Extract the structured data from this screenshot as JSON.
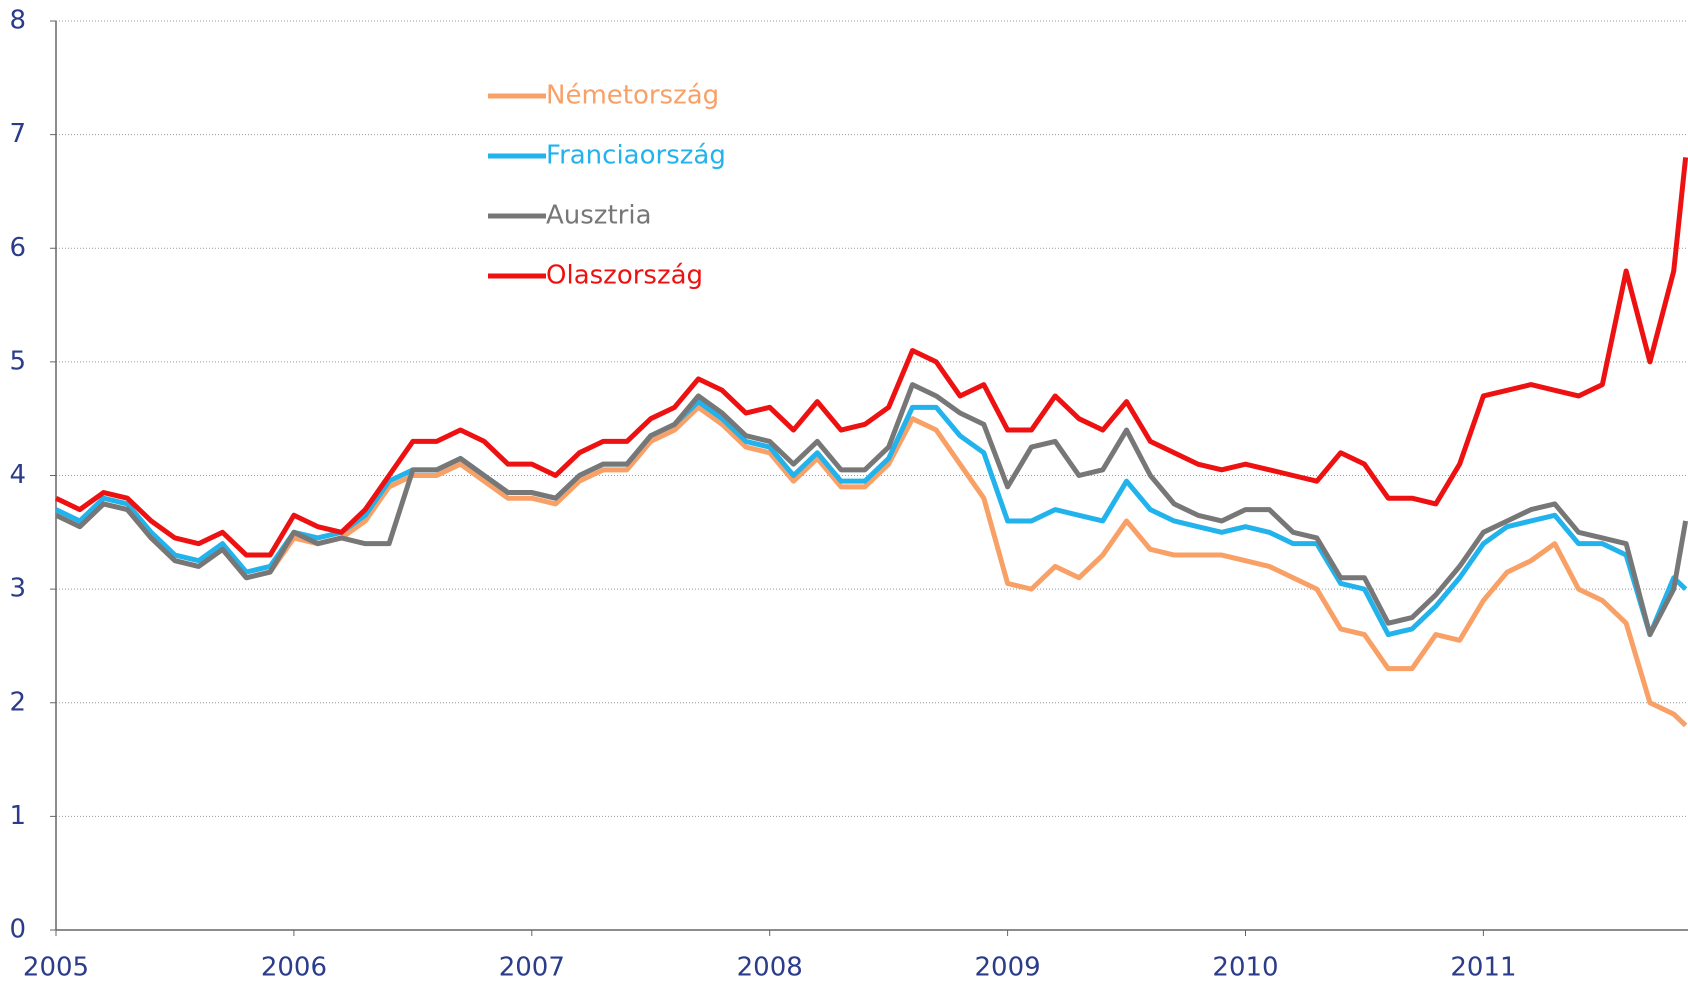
{
  "chart_data": {
    "type": "line",
    "x": [
      2005.0,
      2005.1,
      2005.2,
      2005.3,
      2005.4,
      2005.5,
      2005.6,
      2005.7,
      2005.8,
      2005.9,
      2006.0,
      2006.1,
      2006.2,
      2006.3,
      2006.4,
      2006.5,
      2006.6,
      2006.7,
      2006.8,
      2006.9,
      2007.0,
      2007.1,
      2007.2,
      2007.3,
      2007.4,
      2007.5,
      2007.6,
      2007.7,
      2007.8,
      2007.9,
      2008.0,
      2008.1,
      2008.2,
      2008.3,
      2008.4,
      2008.5,
      2008.6,
      2008.7,
      2008.8,
      2008.9,
      2009.0,
      2009.1,
      2009.2,
      2009.3,
      2009.4,
      2009.5,
      2009.6,
      2009.7,
      2009.8,
      2009.9,
      2010.0,
      2010.1,
      2010.2,
      2010.3,
      2010.4,
      2010.5,
      2010.6,
      2010.7,
      2010.8,
      2010.9,
      2011.0,
      2011.1,
      2011.2,
      2011.3,
      2011.4,
      2011.5,
      2011.6,
      2011.7,
      2011.8,
      2011.85
    ],
    "series": [
      {
        "name": "Németország",
        "color": "#f9a066",
        "values": [
          3.65,
          3.55,
          3.75,
          3.7,
          3.45,
          3.25,
          3.2,
          3.35,
          3.1,
          3.15,
          3.45,
          3.4,
          3.45,
          3.6,
          3.9,
          4.0,
          4.0,
          4.1,
          3.95,
          3.8,
          3.8,
          3.75,
          3.95,
          4.05,
          4.05,
          4.3,
          4.4,
          4.6,
          4.45,
          4.25,
          4.2,
          3.95,
          4.15,
          3.9,
          3.9,
          4.1,
          4.5,
          4.4,
          4.1,
          3.8,
          3.05,
          3.0,
          3.2,
          3.1,
          3.3,
          3.6,
          3.35,
          3.3,
          3.3,
          3.3,
          3.25,
          3.2,
          3.1,
          3.0,
          2.65,
          2.6,
          2.3,
          2.3,
          2.6,
          2.55,
          2.9,
          3.15,
          3.25,
          3.4,
          3.0,
          2.9,
          2.7,
          2.0,
          1.9,
          1.8
        ]
      },
      {
        "name": "Franciaország",
        "color": "#22b3ec",
        "values": [
          3.7,
          3.6,
          3.8,
          3.75,
          3.5,
          3.3,
          3.25,
          3.4,
          3.15,
          3.2,
          3.5,
          3.45,
          3.5,
          3.65,
          3.95,
          4.05,
          4.05,
          4.15,
          4.0,
          3.85,
          3.85,
          3.8,
          4.0,
          4.1,
          4.1,
          4.35,
          4.45,
          4.65,
          4.5,
          4.3,
          4.25,
          4.0,
          4.2,
          3.95,
          3.95,
          4.15,
          4.6,
          4.6,
          4.35,
          4.2,
          3.6,
          3.6,
          3.7,
          3.65,
          3.6,
          3.95,
          3.7,
          3.6,
          3.55,
          3.5,
          3.55,
          3.5,
          3.4,
          3.4,
          3.05,
          3.0,
          2.6,
          2.65,
          2.85,
          3.1,
          3.4,
          3.55,
          3.6,
          3.65,
          3.4,
          3.4,
          3.3,
          2.6,
          3.1,
          3.0
        ]
      },
      {
        "name": "Ausztria",
        "color": "#777777",
        "values": [
          3.65,
          3.55,
          3.75,
          3.7,
          3.45,
          3.25,
          3.2,
          3.35,
          3.1,
          3.15,
          3.5,
          3.4,
          3.45,
          3.4,
          3.4,
          4.05,
          4.05,
          4.15,
          4.0,
          3.85,
          3.85,
          3.8,
          4.0,
          4.1,
          4.1,
          4.35,
          4.45,
          4.7,
          4.55,
          4.35,
          4.3,
          4.1,
          4.3,
          4.05,
          4.05,
          4.25,
          4.8,
          4.7,
          4.55,
          4.45,
          3.9,
          4.25,
          4.3,
          4.0,
          4.05,
          4.4,
          4.0,
          3.75,
          3.65,
          3.6,
          3.7,
          3.7,
          3.5,
          3.45,
          3.1,
          3.1,
          2.7,
          2.75,
          2.95,
          3.2,
          3.5,
          3.6,
          3.7,
          3.75,
          3.5,
          3.45,
          3.4,
          2.6,
          3.0,
          3.6
        ]
      },
      {
        "name": "Olaszország",
        "color": "#ee1111",
        "values": [
          3.8,
          3.7,
          3.85,
          3.8,
          3.6,
          3.45,
          3.4,
          3.5,
          3.3,
          3.3,
          3.65,
          3.55,
          3.5,
          3.7,
          4.0,
          4.3,
          4.3,
          4.4,
          4.3,
          4.1,
          4.1,
          4.0,
          4.2,
          4.3,
          4.3,
          4.5,
          4.6,
          4.85,
          4.75,
          4.55,
          4.6,
          4.4,
          4.65,
          4.4,
          4.45,
          4.6,
          5.1,
          5.0,
          4.7,
          4.8,
          4.4,
          4.4,
          4.7,
          4.5,
          4.4,
          4.65,
          4.3,
          4.2,
          4.1,
          4.05,
          4.1,
          4.05,
          4.0,
          3.95,
          4.2,
          4.1,
          3.8,
          3.8,
          3.75,
          4.1,
          4.7,
          4.75,
          4.8,
          4.75,
          4.7,
          4.8,
          5.8,
          5.0,
          5.8,
          6.8
        ]
      }
    ],
    "xlim": [
      2005,
      2011.86
    ],
    "xticks": [
      2005,
      2006,
      2007,
      2008,
      2009,
      2010,
      2011
    ],
    "ylim": [
      0,
      8
    ],
    "yticks": [
      0,
      1,
      2,
      3,
      4,
      5,
      6,
      7,
      8
    ],
    "grid": true,
    "legend": "upper left"
  }
}
